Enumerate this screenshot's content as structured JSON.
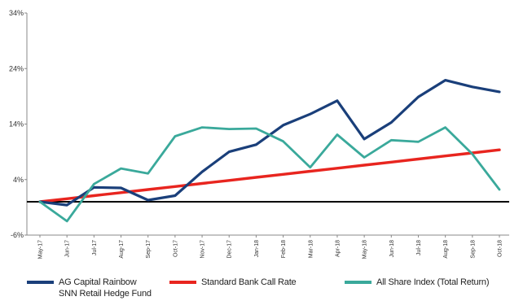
{
  "chart_data": {
    "type": "line",
    "categories": [
      "May-17",
      "Jun-17",
      "Jul-17",
      "Aug-17",
      "Sep-17",
      "Oct-17",
      "Nov-17",
      "Dec-17",
      "Jan-18",
      "Feb-18",
      "Mar-18",
      "Apr-18",
      "May-18",
      "Jun-18",
      "Jul-18",
      "Aug-18",
      "Sep-18",
      "Oct-18"
    ],
    "y_ticks": [
      "34%",
      "24%",
      "14%",
      "4%",
      "-6%"
    ],
    "ylim": [
      -6,
      34
    ],
    "baseline": 0,
    "grid": false,
    "legend_position": "bottom",
    "series": [
      {
        "name": "AG Capital Rainbow SNN Retail Hedge Fund",
        "color": "#1a3f7a",
        "values": [
          0.0,
          -0.6,
          2.6,
          2.5,
          0.3,
          1.1,
          5.4,
          9.0,
          10.3,
          13.8,
          15.8,
          18.2,
          11.3,
          14.3,
          18.9,
          21.9,
          20.7,
          19.8
        ]
      },
      {
        "name": "Standard Bank Call Rate",
        "color": "#e8251f",
        "values": [
          0.0,
          0.55,
          1.1,
          1.65,
          2.2,
          2.75,
          3.3,
          3.85,
          4.4,
          4.95,
          5.5,
          6.05,
          6.6,
          7.15,
          7.7,
          8.25,
          8.8,
          9.35
        ]
      },
      {
        "name": "All Share Index (Total Return)",
        "color": "#3aa99b",
        "values": [
          0.0,
          -3.5,
          3.2,
          6.0,
          5.1,
          11.8,
          13.4,
          13.1,
          13.2,
          10.9,
          6.2,
          12.1,
          8.0,
          11.1,
          10.8,
          13.4,
          8.6,
          2.2
        ]
      }
    ]
  },
  "legend": {
    "items": [
      {
        "label_line1": "AG Capital Rainbow",
        "label_line2": "SNN Retail Hedge Fund",
        "color": "#1a3f7a"
      },
      {
        "label_line1": "Standard Bank Call Rate",
        "label_line2": "",
        "color": "#e8251f"
      },
      {
        "label_line1": "All Share Index (Total Return)",
        "label_line2": "",
        "color": "#3aa99b"
      }
    ]
  }
}
